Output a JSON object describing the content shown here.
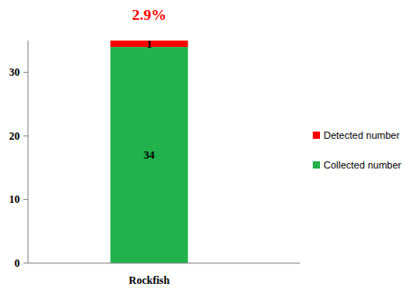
{
  "chart_data": {
    "type": "bar",
    "title": "2.9%",
    "categories": [
      "Rockfish"
    ],
    "series": [
      {
        "name": "Collected number",
        "color": "#22b14c",
        "values": [
          34
        ]
      },
      {
        "name": "Detected number",
        "color": "#ff0000",
        "values": [
          1
        ]
      }
    ],
    "stacked": true,
    "data_labels": true,
    "legend": "right",
    "grid": false,
    "ylim": [
      0,
      35
    ],
    "yticks": [
      0,
      10,
      20,
      30
    ]
  }
}
